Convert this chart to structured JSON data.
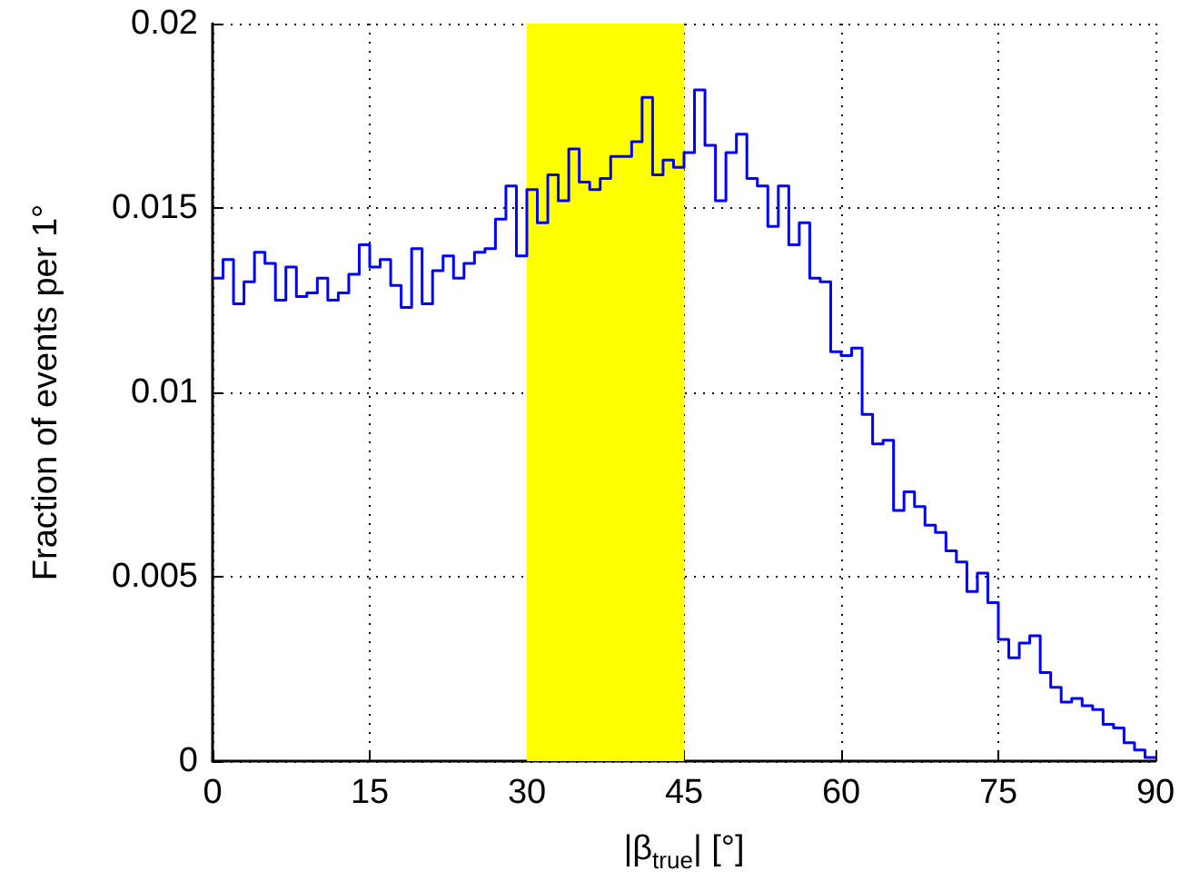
{
  "chart_data": {
    "type": "histogram",
    "xlabel": "|β$_{true}$| [°]",
    "ylabel": "Fraction of events per 1°",
    "color": "#0000ff",
    "bins": [
      0,
      1,
      2,
      3,
      4,
      5,
      6,
      7,
      8,
      9,
      10,
      11,
      12,
      13,
      14,
      15,
      16,
      17,
      18,
      19,
      20,
      21,
      22,
      23,
      24,
      25,
      26,
      27,
      28,
      29,
      30,
      31,
      32,
      33,
      34,
      35,
      36,
      37,
      38,
      39,
      40,
      41,
      42,
      43,
      44,
      45,
      46,
      47,
      48,
      49,
      50,
      51,
      52,
      53,
      54,
      55,
      56,
      57,
      58,
      59,
      60,
      61,
      62,
      63,
      64,
      65,
      66,
      67,
      68,
      69,
      70,
      71,
      72,
      73,
      74,
      75,
      76,
      77,
      78,
      79,
      80,
      81,
      82,
      83,
      84,
      85,
      86,
      87,
      88,
      89,
      90
    ],
    "values": [
      0.0131,
      0.0136,
      0.0124,
      0.013,
      0.0138,
      0.0135,
      0.0125,
      0.0134,
      0.0126,
      0.0127,
      0.0131,
      0.0125,
      0.0127,
      0.0132,
      0.014,
      0.0134,
      0.0136,
      0.0129,
      0.0123,
      0.0139,
      0.0124,
      0.0133,
      0.0137,
      0.0131,
      0.0135,
      0.0138,
      0.0139,
      0.0147,
      0.0156,
      0.0137,
      0.0155,
      0.0146,
      0.0159,
      0.0152,
      0.0166,
      0.0157,
      0.0155,
      0.0158,
      0.0164,
      0.0164,
      0.0168,
      0.018,
      0.0159,
      0.0163,
      0.0161,
      0.0165,
      0.0182,
      0.0167,
      0.0152,
      0.0165,
      0.017,
      0.0158,
      0.0156,
      0.0145,
      0.0156,
      0.014,
      0.0146,
      0.0131,
      0.013,
      0.0111,
      0.011,
      0.0112,
      0.0094,
      0.0086,
      0.0087,
      0.0068,
      0.0073,
      0.0069,
      0.0064,
      0.0062,
      0.0057,
      0.0054,
      0.0046,
      0.0051,
      0.0043,
      0.0033,
      0.0028,
      0.0032,
      0.0034,
      0.0024,
      0.002,
      0.0016,
      0.0017,
      0.0015,
      0.0014,
      0.001,
      0.0009,
      0.0005,
      0.0003,
      0.0001
    ],
    "xlim": [
      0,
      90
    ],
    "xticks": [
      0,
      15,
      30,
      45,
      60,
      75,
      90
    ],
    "ylim": [
      0,
      0.02
    ],
    "yticks": [
      0,
      0.005,
      0.01,
      0.015,
      0.02
    ],
    "grid": true,
    "bands": [
      {
        "axis": "x",
        "from": 30,
        "to": 45,
        "color": "#ffff00"
      }
    ]
  }
}
